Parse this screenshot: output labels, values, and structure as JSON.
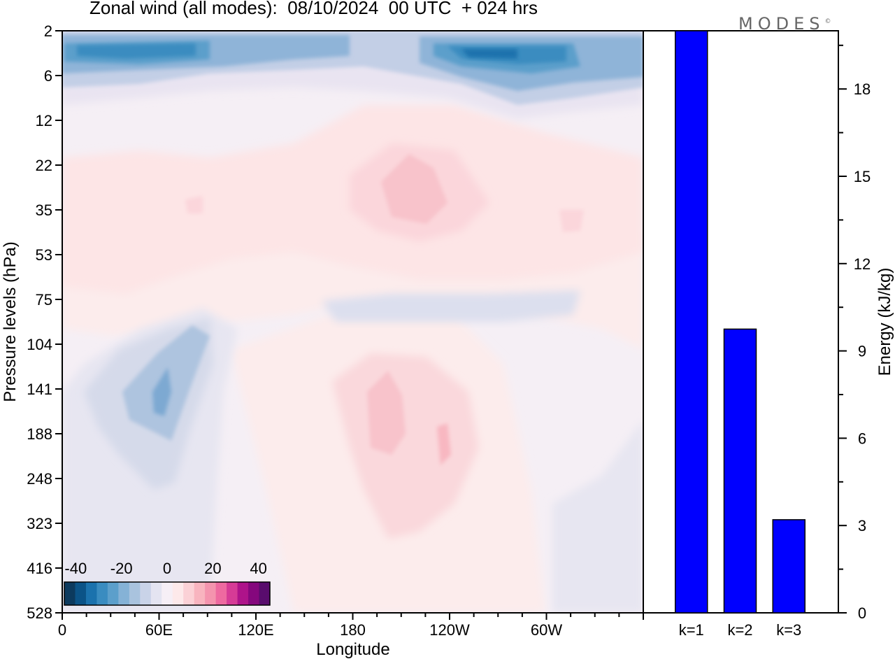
{
  "title": "Zonal wind (all modes):  08/10/2024  00 UTC  + 024 hrs",
  "brand": "MODES",
  "brand_mark": "©",
  "chart_data": [
    {
      "type": "heatmap",
      "title": "Zonal wind (all modes):  08/10/2024  00 UTC  + 024 hrs",
      "xlabel": "Longitude",
      "ylabel": "Pressure levels (hPa)",
      "x_ticks": [
        "0",
        "60E",
        "120E",
        "180",
        "120W",
        "60W"
      ],
      "y_ticks": [
        "2",
        "6",
        "12",
        "22",
        "35",
        "53",
        "75",
        "104",
        "141",
        "188",
        "248",
        "323",
        "416",
        "528"
      ],
      "xlim": [
        0,
        360
      ],
      "colorbar": {
        "labels": [
          "-40",
          "-20",
          "0",
          "20",
          "40"
        ],
        "range": [
          -45,
          45
        ],
        "step": 5,
        "colors": [
          "#0c3a5e",
          "#0b5387",
          "#1b72ad",
          "#3a8cc0",
          "#5c9fcb",
          "#85b2d6",
          "#a9c3de",
          "#c9d3e8",
          "#e4e4f1",
          "#f6eff6",
          "#fde9ea",
          "#fbd1d6",
          "#f8b4bf",
          "#f494ae",
          "#ee6aa0",
          "#d63b96",
          "#ae138a",
          "#85077d",
          "#590c6d"
        ],
        "extend": "none"
      },
      "field_summary": [
        {
          "region": "top levels 2-6 hPa, 0-90E",
          "value_range": [
            -30,
            -20
          ]
        },
        {
          "region": "top levels 2-6 hPa, 100W-170W",
          "value_range": [
            -30,
            -20
          ]
        },
        {
          "region": "22-53 hPa, most longitudes",
          "value_range": [
            5,
            15
          ]
        },
        {
          "region": "100-250 hPa, 30E-75E",
          "value_range": [
            -20,
            -10
          ]
        },
        {
          "region": "100-323 hPa, 150E-140W",
          "value_range": [
            5,
            20
          ]
        },
        {
          "region": "lower levels, elsewhere",
          "value_range": [
            -5,
            5
          ]
        }
      ]
    },
    {
      "type": "bar",
      "categories": [
        "k=1",
        "k=2",
        "k=3"
      ],
      "values": [
        20.0,
        9.75,
        3.2
      ],
      "ylabel": "Energy (kJ/kg)",
      "ylim": [
        0,
        20
      ],
      "y_ticks": [
        0,
        3,
        6,
        9,
        12,
        15,
        18
      ],
      "color": "#0000ff"
    }
  ]
}
